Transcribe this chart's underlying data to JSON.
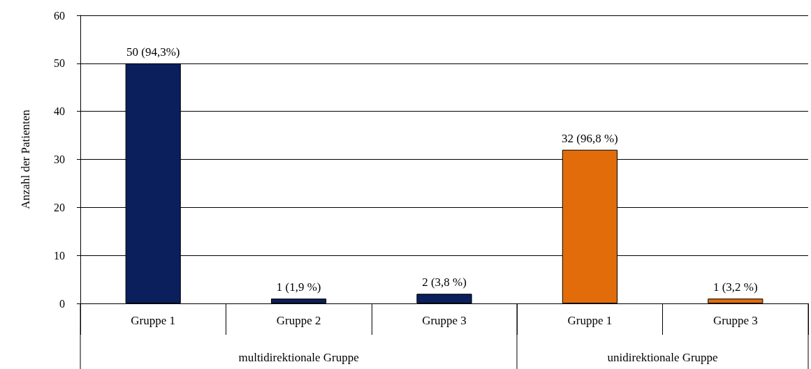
{
  "chart_data": {
    "type": "bar",
    "ylabel": "Anzahl der Patienten",
    "categories": [
      "Gruppe 1",
      "Gruppe 2",
      "Gruppe 3",
      "Gruppe 1",
      "Gruppe 3"
    ],
    "series": [
      {
        "color": "#0a1f5c",
        "values": [
          50,
          1,
          2,
          null,
          null
        ],
        "value_labels": [
          "50 (94,3%)",
          "1 (1,9 %)",
          "2 (3,8 %)",
          null,
          null
        ]
      },
      {
        "color": "#e36c0a",
        "values": [
          null,
          null,
          null,
          32,
          1
        ],
        "value_labels": [
          null,
          null,
          null,
          "32 (96,8 %)",
          "1 (3,2 %)"
        ]
      }
    ],
    "annotations": [
      "multidirektionale Gruppe",
      "unidirektionale Gruppe"
    ],
    "ylim": [
      0,
      60
    ],
    "yticks": [
      0,
      10,
      20,
      30,
      40,
      50,
      60
    ],
    "grid": "y"
  }
}
